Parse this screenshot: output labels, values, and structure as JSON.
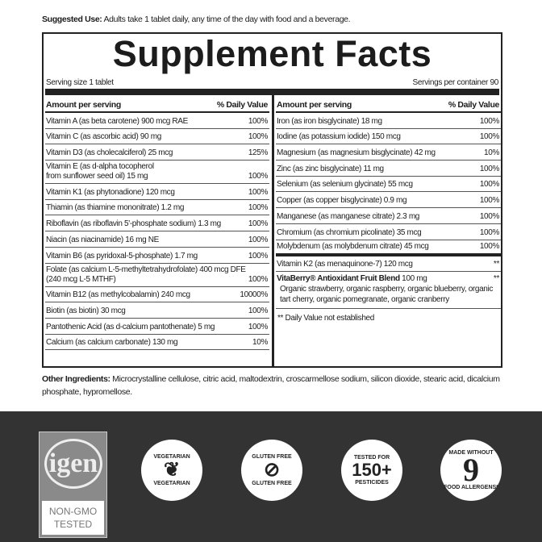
{
  "suggested_use": {
    "label": "Suggested Use:",
    "text": " Adults take 1 tablet daily, any time of the day with food and a beverage."
  },
  "title": "Supplement Facts",
  "serving_size": "Serving size 1 tablet",
  "servings_per_container": "Servings per container 90",
  "header": {
    "amount": "Amount per serving",
    "dv": "% Daily Value"
  },
  "left_rows": [
    {
      "name": "Vitamin A (as beta carotene) 900 mcg RAE",
      "dv": "100%"
    },
    {
      "name": "Vitamin C (as ascorbic acid) 90 mg",
      "dv": "100%"
    },
    {
      "name": "Vitamin D3 (as cholecalciferol) 25 mcg",
      "dv": "125%"
    },
    {
      "name": "Vitamin E (as d-alpha tocopherol\nfrom sunflower seed oil) 15 mg",
      "dv": "100%"
    },
    {
      "name": "Vitamin K1 (as phytonadione) 120 mcg",
      "dv": "100%"
    },
    {
      "name": "Thiamin (as thiamine mononitrate) 1.2 mg",
      "dv": "100%"
    },
    {
      "name": "Riboflavin (as riboflavin 5'-phosphate sodium) 1.3 mg",
      "dv": "100%"
    },
    {
      "name": "Niacin (as niacinamide) 16 mg NE",
      "dv": "100%"
    },
    {
      "name": "Vitamin B6 (as pyridoxal-5-phosphate) 1.7 mg",
      "dv": "100%"
    },
    {
      "name": "Folate (as calcium L-5-methyltetrahydrofolate) 400 mcg DFE\n(240 mcg L-5 MTHF)",
      "dv": "100%"
    },
    {
      "name": "Vitamin B12 (as methylcobalamin) 240 mcg",
      "dv": "10000%"
    },
    {
      "name": "Biotin (as biotin) 30 mcg",
      "dv": "100%"
    },
    {
      "name": "Pantothenic Acid (as d-calcium pantothenate) 5 mg",
      "dv": "100%"
    },
    {
      "name": "Calcium (as calcium carbonate) 130 mg",
      "dv": "10%"
    }
  ],
  "right_rows": [
    {
      "name": "Iron (as iron bisglycinate) 18 mg",
      "dv": "100%"
    },
    {
      "name": "Iodine (as potassium iodide) 150 mcg",
      "dv": "100%"
    },
    {
      "name": "Magnesium (as magnesium bisglycinate) 42 mg",
      "dv": "10%"
    },
    {
      "name": "Zinc (as zinc bisglycinate) 11 mg",
      "dv": "100%"
    },
    {
      "name": "Selenium (as selenium glycinate) 55 mcg",
      "dv": "100%"
    },
    {
      "name": "Copper (as copper bisglycinate) 0.9 mg",
      "dv": "100%"
    },
    {
      "name": "Manganese (as manganese citrate) 2.3 mg",
      "dv": "100%"
    },
    {
      "name": "Chromium (as chromium picolinate) 35 mcg",
      "dv": "100%"
    },
    {
      "name": "Molybdenum (as molybdenum citrate) 45 mcg",
      "dv": "100%"
    }
  ],
  "k2": {
    "name": "Vitamin K2 (as menaquinone-7) 120 mcg",
    "dv": "**"
  },
  "blend": {
    "name": "VitaBerry® Antioxidant Fruit Blend",
    "amount": " 100 mg",
    "dv": "**",
    "ingredients": "Organic strawberry, organic raspberry, organic blueberry, organic tart cherry, organic pomegranate, organic cranberry"
  },
  "footnote": "** Daily Value not established",
  "other_ingredients": {
    "label": "Other Ingredients:",
    "text": " Microcrystalline cellulose, citric acid, maltodextrin, croscarmellose sodium, silicon dioxide, stearic acid, dicalcium phosphate, hypromellose."
  },
  "badges": {
    "gmo": {
      "logo": "igen",
      "text1": "NON-GMO",
      "text2": "TESTED"
    },
    "vegetarian": {
      "text": "VEGETARIAN",
      "icon": "leaf-icon"
    },
    "gluten": {
      "text": "GLUTEN FREE",
      "icon": "wheat-crossed-icon"
    },
    "pesticides": {
      "top": "TESTED FOR",
      "num": "150+",
      "bottom": "PESTICIDES"
    },
    "allergens": {
      "top": "MADE WITHOUT",
      "num": "9",
      "bottom": "FOOD ALLERGENS*"
    }
  }
}
